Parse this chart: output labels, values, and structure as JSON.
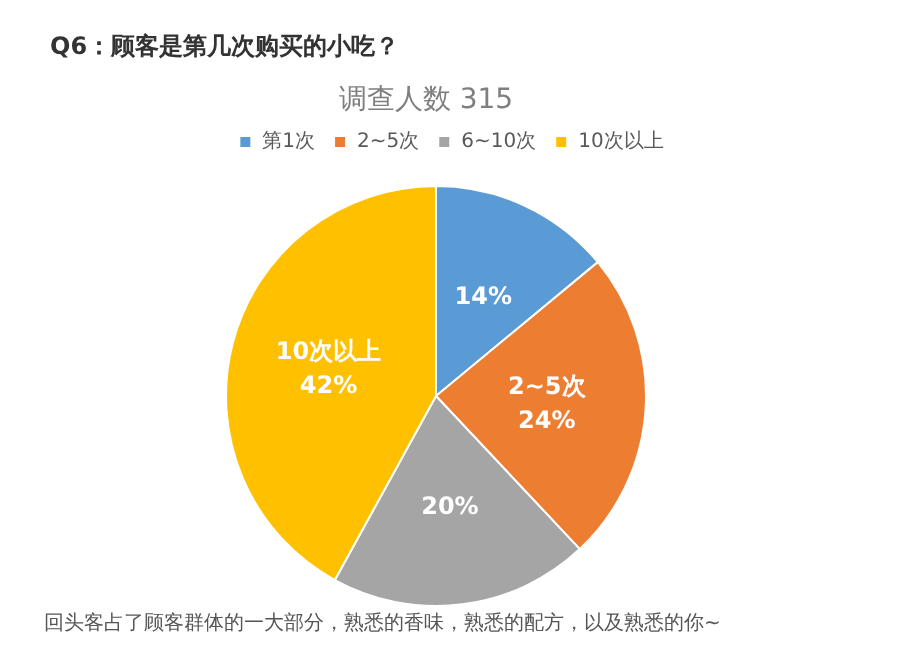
{
  "chart_data": {
    "type": "pie",
    "title": "Q6：顾客是第几次购买的小吃？",
    "subtitle": "调查人数 315",
    "categories": [
      "第1次",
      "2~5次",
      "6~10次",
      "10次以上"
    ],
    "values": [
      14,
      24,
      20,
      42
    ],
    "colors": [
      "#5b9bd5",
      "#ed7d31",
      "#a5a5a5",
      "#ffc000"
    ],
    "value_labels": [
      "14%",
      "2~5次\n24%",
      "20%",
      "10次以上\n42%"
    ],
    "legend": "top",
    "annotations": [
      "回头客占了顾客群体的一大部分，熟悉的香味，熟悉的配方，以及熟悉的你~"
    ]
  }
}
